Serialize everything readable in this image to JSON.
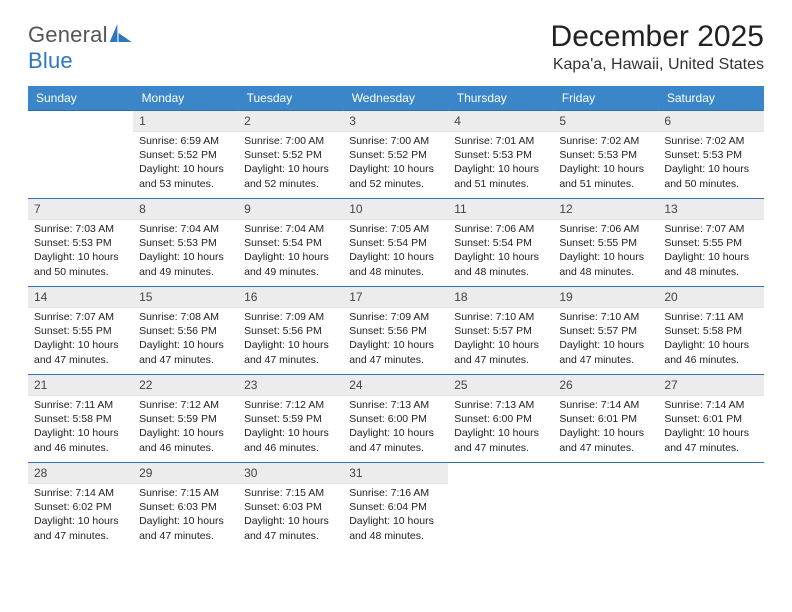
{
  "logo": {
    "word1": "General",
    "word2": "Blue"
  },
  "title": "December 2025",
  "subtitle": "Kapa'a, Hawaii, United States",
  "colors": {
    "header_bg": "#3b86c8",
    "header_text": "#ffffff",
    "row_divider": "#2f6fa9",
    "daynum_bg": "#ececec",
    "logo_blue": "#2f77bd"
  },
  "weekdays": [
    "Sunday",
    "Monday",
    "Tuesday",
    "Wednesday",
    "Thursday",
    "Friday",
    "Saturday"
  ],
  "weeks": [
    [
      {
        "empty": true
      },
      {
        "n": "1",
        "sunrise": "Sunrise: 6:59 AM",
        "sunset": "Sunset: 5:52 PM",
        "day1": "Daylight: 10 hours",
        "day2": "and 53 minutes."
      },
      {
        "n": "2",
        "sunrise": "Sunrise: 7:00 AM",
        "sunset": "Sunset: 5:52 PM",
        "day1": "Daylight: 10 hours",
        "day2": "and 52 minutes."
      },
      {
        "n": "3",
        "sunrise": "Sunrise: 7:00 AM",
        "sunset": "Sunset: 5:52 PM",
        "day1": "Daylight: 10 hours",
        "day2": "and 52 minutes."
      },
      {
        "n": "4",
        "sunrise": "Sunrise: 7:01 AM",
        "sunset": "Sunset: 5:53 PM",
        "day1": "Daylight: 10 hours",
        "day2": "and 51 minutes."
      },
      {
        "n": "5",
        "sunrise": "Sunrise: 7:02 AM",
        "sunset": "Sunset: 5:53 PM",
        "day1": "Daylight: 10 hours",
        "day2": "and 51 minutes."
      },
      {
        "n": "6",
        "sunrise": "Sunrise: 7:02 AM",
        "sunset": "Sunset: 5:53 PM",
        "day1": "Daylight: 10 hours",
        "day2": "and 50 minutes."
      }
    ],
    [
      {
        "n": "7",
        "sunrise": "Sunrise: 7:03 AM",
        "sunset": "Sunset: 5:53 PM",
        "day1": "Daylight: 10 hours",
        "day2": "and 50 minutes."
      },
      {
        "n": "8",
        "sunrise": "Sunrise: 7:04 AM",
        "sunset": "Sunset: 5:53 PM",
        "day1": "Daylight: 10 hours",
        "day2": "and 49 minutes."
      },
      {
        "n": "9",
        "sunrise": "Sunrise: 7:04 AM",
        "sunset": "Sunset: 5:54 PM",
        "day1": "Daylight: 10 hours",
        "day2": "and 49 minutes."
      },
      {
        "n": "10",
        "sunrise": "Sunrise: 7:05 AM",
        "sunset": "Sunset: 5:54 PM",
        "day1": "Daylight: 10 hours",
        "day2": "and 48 minutes."
      },
      {
        "n": "11",
        "sunrise": "Sunrise: 7:06 AM",
        "sunset": "Sunset: 5:54 PM",
        "day1": "Daylight: 10 hours",
        "day2": "and 48 minutes."
      },
      {
        "n": "12",
        "sunrise": "Sunrise: 7:06 AM",
        "sunset": "Sunset: 5:55 PM",
        "day1": "Daylight: 10 hours",
        "day2": "and 48 minutes."
      },
      {
        "n": "13",
        "sunrise": "Sunrise: 7:07 AM",
        "sunset": "Sunset: 5:55 PM",
        "day1": "Daylight: 10 hours",
        "day2": "and 48 minutes."
      }
    ],
    [
      {
        "n": "14",
        "sunrise": "Sunrise: 7:07 AM",
        "sunset": "Sunset: 5:55 PM",
        "day1": "Daylight: 10 hours",
        "day2": "and 47 minutes."
      },
      {
        "n": "15",
        "sunrise": "Sunrise: 7:08 AM",
        "sunset": "Sunset: 5:56 PM",
        "day1": "Daylight: 10 hours",
        "day2": "and 47 minutes."
      },
      {
        "n": "16",
        "sunrise": "Sunrise: 7:09 AM",
        "sunset": "Sunset: 5:56 PM",
        "day1": "Daylight: 10 hours",
        "day2": "and 47 minutes."
      },
      {
        "n": "17",
        "sunrise": "Sunrise: 7:09 AM",
        "sunset": "Sunset: 5:56 PM",
        "day1": "Daylight: 10 hours",
        "day2": "and 47 minutes."
      },
      {
        "n": "18",
        "sunrise": "Sunrise: 7:10 AM",
        "sunset": "Sunset: 5:57 PM",
        "day1": "Daylight: 10 hours",
        "day2": "and 47 minutes."
      },
      {
        "n": "19",
        "sunrise": "Sunrise: 7:10 AM",
        "sunset": "Sunset: 5:57 PM",
        "day1": "Daylight: 10 hours",
        "day2": "and 47 minutes."
      },
      {
        "n": "20",
        "sunrise": "Sunrise: 7:11 AM",
        "sunset": "Sunset: 5:58 PM",
        "day1": "Daylight: 10 hours",
        "day2": "and 46 minutes."
      }
    ],
    [
      {
        "n": "21",
        "sunrise": "Sunrise: 7:11 AM",
        "sunset": "Sunset: 5:58 PM",
        "day1": "Daylight: 10 hours",
        "day2": "and 46 minutes."
      },
      {
        "n": "22",
        "sunrise": "Sunrise: 7:12 AM",
        "sunset": "Sunset: 5:59 PM",
        "day1": "Daylight: 10 hours",
        "day2": "and 46 minutes."
      },
      {
        "n": "23",
        "sunrise": "Sunrise: 7:12 AM",
        "sunset": "Sunset: 5:59 PM",
        "day1": "Daylight: 10 hours",
        "day2": "and 46 minutes."
      },
      {
        "n": "24",
        "sunrise": "Sunrise: 7:13 AM",
        "sunset": "Sunset: 6:00 PM",
        "day1": "Daylight: 10 hours",
        "day2": "and 47 minutes."
      },
      {
        "n": "25",
        "sunrise": "Sunrise: 7:13 AM",
        "sunset": "Sunset: 6:00 PM",
        "day1": "Daylight: 10 hours",
        "day2": "and 47 minutes."
      },
      {
        "n": "26",
        "sunrise": "Sunrise: 7:14 AM",
        "sunset": "Sunset: 6:01 PM",
        "day1": "Daylight: 10 hours",
        "day2": "and 47 minutes."
      },
      {
        "n": "27",
        "sunrise": "Sunrise: 7:14 AM",
        "sunset": "Sunset: 6:01 PM",
        "day1": "Daylight: 10 hours",
        "day2": "and 47 minutes."
      }
    ],
    [
      {
        "n": "28",
        "sunrise": "Sunrise: 7:14 AM",
        "sunset": "Sunset: 6:02 PM",
        "day1": "Daylight: 10 hours",
        "day2": "and 47 minutes."
      },
      {
        "n": "29",
        "sunrise": "Sunrise: 7:15 AM",
        "sunset": "Sunset: 6:03 PM",
        "day1": "Daylight: 10 hours",
        "day2": "and 47 minutes."
      },
      {
        "n": "30",
        "sunrise": "Sunrise: 7:15 AM",
        "sunset": "Sunset: 6:03 PM",
        "day1": "Daylight: 10 hours",
        "day2": "and 47 minutes."
      },
      {
        "n": "31",
        "sunrise": "Sunrise: 7:16 AM",
        "sunset": "Sunset: 6:04 PM",
        "day1": "Daylight: 10 hours",
        "day2": "and 48 minutes."
      },
      {
        "empty": true
      },
      {
        "empty": true
      },
      {
        "empty": true
      }
    ]
  ]
}
